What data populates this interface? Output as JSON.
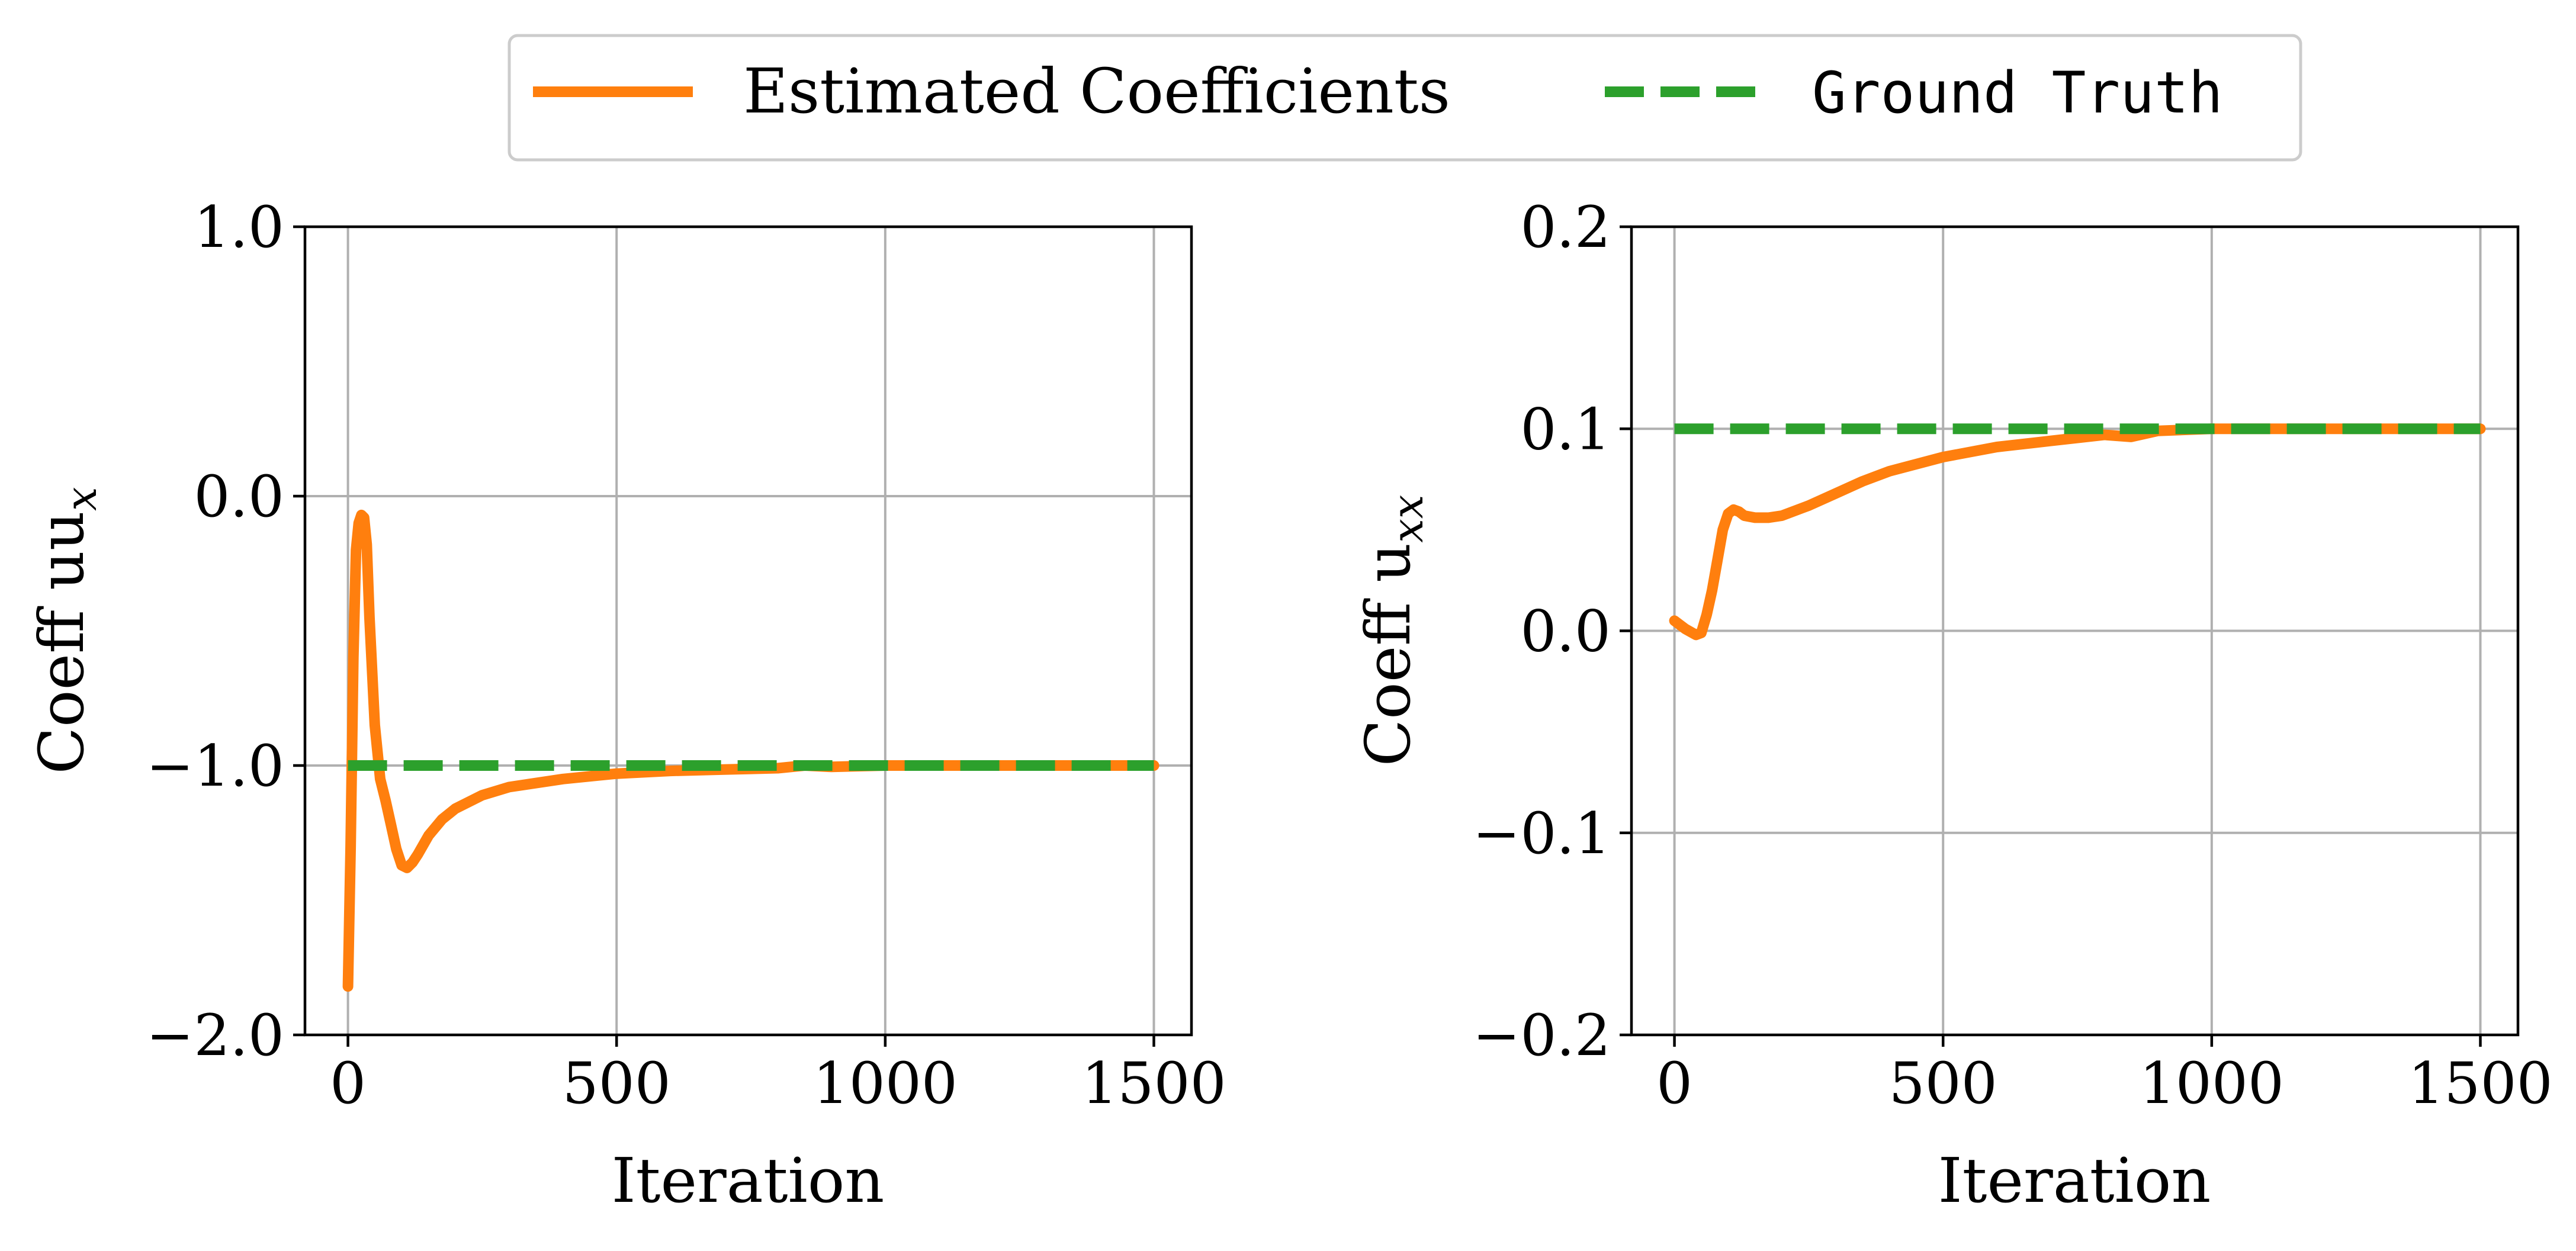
{
  "legend": {
    "items": [
      {
        "label": "Estimated Coefficients",
        "color": "#ff7f0e",
        "style": "solid"
      },
      {
        "label": "Ground Truth",
        "color": "#2ca02c",
        "style": "dashed"
      }
    ]
  },
  "chart_data": [
    {
      "type": "line",
      "xlabel": "Iteration",
      "ylabel": "Coeff uu",
      "ylabel_subscript": "x",
      "xlim": [
        -80,
        1570
      ],
      "ylim": [
        -2.0,
        1.0
      ],
      "x_ticks": [
        0,
        500,
        1000,
        1500
      ],
      "x_tick_labels": [
        "0",
        "500",
        "1000",
        "1500"
      ],
      "y_ticks": [
        1.0,
        0.0,
        -1.0,
        -2.0
      ],
      "y_tick_labels": [
        "1.0",
        "0.0",
        "−1.0",
        "−2.0"
      ],
      "grid": true,
      "series": [
        {
          "name": "Estimated Coefficients",
          "color": "#ff7f0e",
          "style": "solid",
          "x": [
            0,
            5,
            10,
            15,
            20,
            25,
            30,
            35,
            40,
            50,
            60,
            70,
            80,
            90,
            100,
            110,
            120,
            130,
            150,
            175,
            200,
            250,
            300,
            400,
            500,
            600,
            700,
            800,
            850,
            900,
            1000,
            1100,
            1200,
            1300,
            1400,
            1500
          ],
          "y": [
            -1.82,
            -1.3,
            -0.6,
            -0.2,
            -0.1,
            -0.07,
            -0.08,
            -0.18,
            -0.45,
            -0.85,
            -1.05,
            -1.13,
            -1.22,
            -1.31,
            -1.37,
            -1.38,
            -1.36,
            -1.33,
            -1.26,
            -1.2,
            -1.16,
            -1.11,
            -1.08,
            -1.05,
            -1.03,
            -1.02,
            -1.015,
            -1.01,
            -1.0,
            -1.005,
            -1.0,
            -1.0,
            -1.0,
            -1.0,
            -1.0,
            -1.0
          ]
        },
        {
          "name": "Ground Truth",
          "color": "#2ca02c",
          "style": "dashed",
          "x": [
            0,
            1500
          ],
          "y": [
            -1.0,
            -1.0
          ]
        }
      ]
    },
    {
      "type": "line",
      "xlabel": "Iteration",
      "ylabel": "Coeff u",
      "ylabel_subscript": "xx",
      "xlim": [
        -80,
        1570
      ],
      "ylim": [
        -0.2,
        0.2
      ],
      "x_ticks": [
        0,
        500,
        1000,
        1500
      ],
      "x_tick_labels": [
        "0",
        "500",
        "1000",
        "1500"
      ],
      "y_ticks": [
        0.2,
        0.1,
        0.0,
        -0.1,
        -0.2
      ],
      "y_tick_labels": [
        "0.2",
        "0.1",
        "0.0",
        "−0.1",
        "−0.2"
      ],
      "grid": true,
      "series": [
        {
          "name": "Estimated Coefficients",
          "color": "#ff7f0e",
          "style": "solid",
          "x": [
            0,
            20,
            40,
            50,
            60,
            70,
            80,
            90,
            100,
            110,
            120,
            130,
            150,
            175,
            200,
            250,
            300,
            350,
            400,
            500,
            600,
            700,
            800,
            850,
            900,
            1000,
            1100,
            1200,
            1300,
            1400,
            1500
          ],
          "y": [
            0.005,
            0.001,
            -0.002,
            -0.001,
            0.008,
            0.02,
            0.035,
            0.05,
            0.058,
            0.06,
            0.059,
            0.057,
            0.056,
            0.056,
            0.057,
            0.062,
            0.068,
            0.074,
            0.079,
            0.086,
            0.091,
            0.094,
            0.097,
            0.096,
            0.099,
            0.1,
            0.1,
            0.1,
            0.1,
            0.1,
            0.1
          ]
        },
        {
          "name": "Ground Truth",
          "color": "#2ca02c",
          "style": "dashed",
          "x": [
            0,
            1500
          ],
          "y": [
            0.1,
            0.1
          ]
        }
      ]
    }
  ]
}
